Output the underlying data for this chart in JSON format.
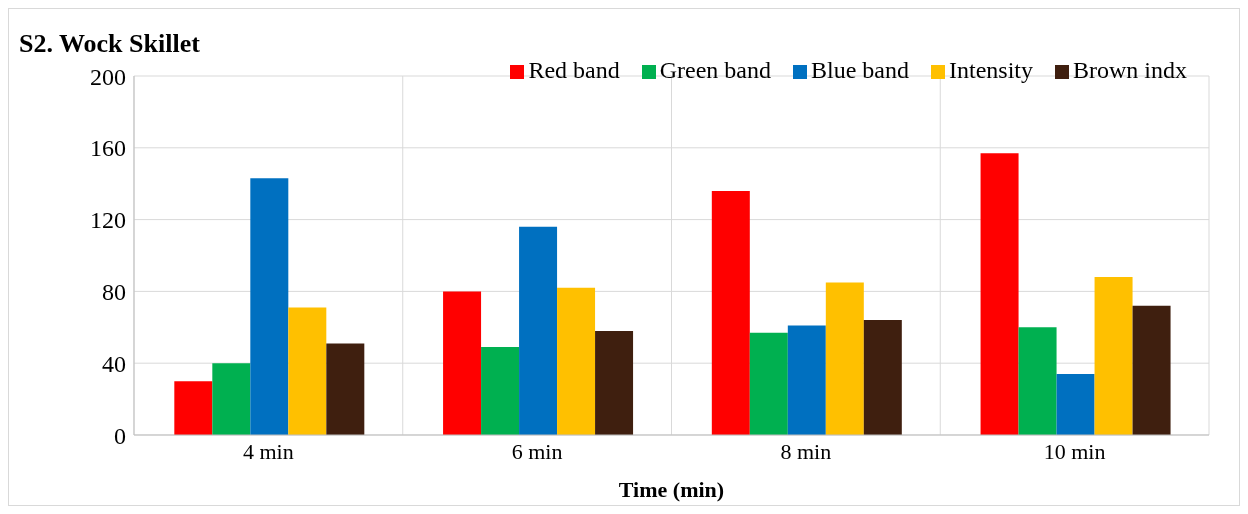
{
  "chart_data": {
    "type": "bar",
    "title": "S2. Wock Skillet",
    "xlabel": "Time (min)",
    "categories": [
      "4 min",
      "6 min",
      "8 min",
      "10 min"
    ],
    "series": [
      {
        "name": "Red band",
        "color": "#ff0000",
        "values": [
          30,
          80,
          136,
          157
        ]
      },
      {
        "name": "Green band",
        "color": "#00b050",
        "values": [
          40,
          49,
          57,
          60
        ]
      },
      {
        "name": "Blue band",
        "color": "#0070c0",
        "values": [
          143,
          116,
          61,
          34
        ]
      },
      {
        "name": "Intensity",
        "color": "#ffc000",
        "values": [
          71,
          82,
          85,
          88
        ]
      },
      {
        "name": "Brown indx",
        "color": "#3f1f0f",
        "values": [
          51,
          58,
          64,
          72
        ]
      }
    ],
    "ylim": [
      0,
      200
    ],
    "yticks": [
      0,
      40,
      80,
      120,
      160,
      200
    ],
    "grid": true,
    "legend": "top right"
  }
}
